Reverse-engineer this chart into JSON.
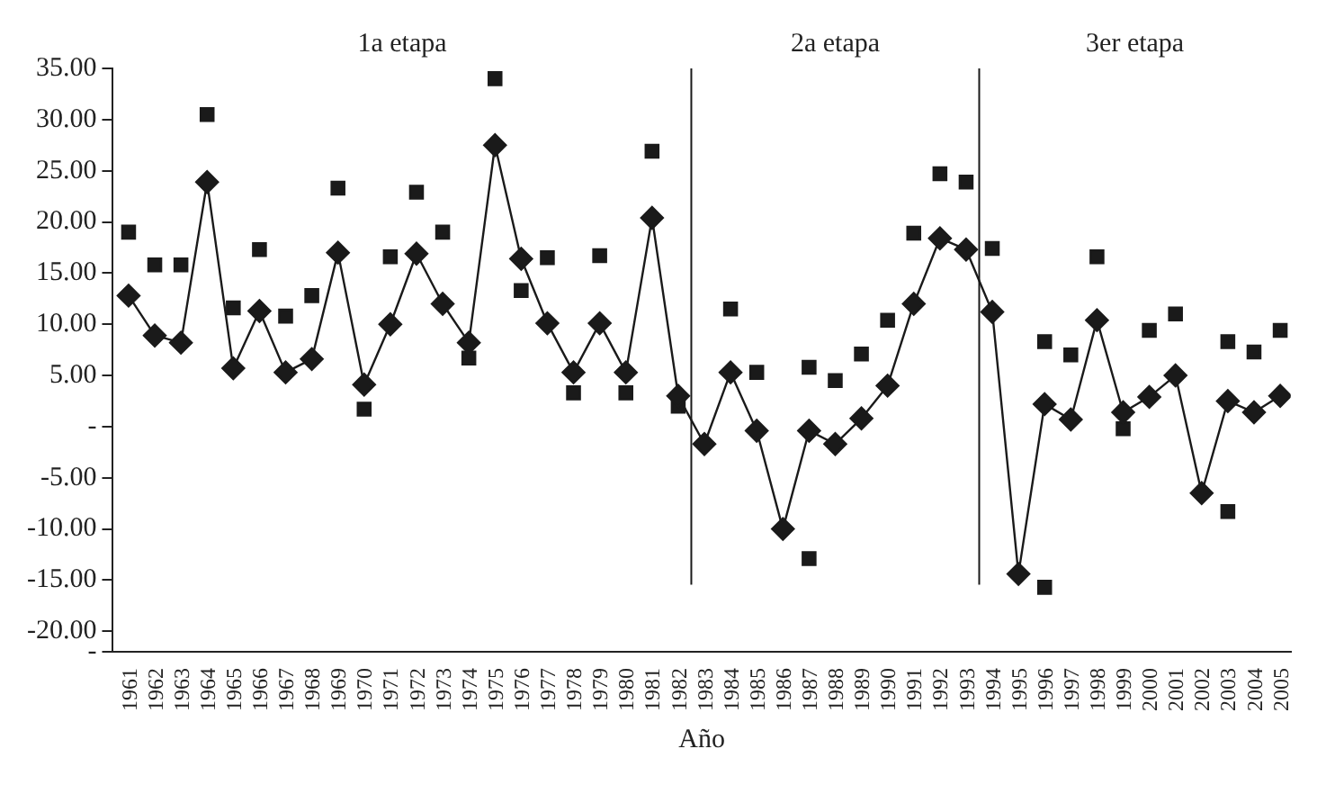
{
  "chart_data": {
    "type": "line",
    "xlabel": "Año",
    "x": [
      1961,
      1962,
      1963,
      1964,
      1965,
      1966,
      1967,
      1968,
      1969,
      1970,
      1971,
      1972,
      1973,
      1974,
      1975,
      1976,
      1977,
      1978,
      1979,
      1980,
      1981,
      1982,
      1983,
      1984,
      1985,
      1986,
      1987,
      1988,
      1989,
      1990,
      1991,
      1992,
      1993,
      1994,
      1995,
      1996,
      1997,
      1998,
      1999,
      2000,
      2001,
      2002,
      2003,
      2004,
      2005
    ],
    "series": [
      {
        "color": "#1a1a1a",
        "marker": "diamond",
        "values": [
          12.8,
          8.9,
          8.2,
          23.9,
          5.7,
          11.3,
          5.3,
          6.6,
          17.0,
          4.1,
          10.0,
          16.9,
          12.0,
          8.2,
          27.5,
          16.4,
          10.1,
          5.3,
          10.1,
          5.3,
          20.4,
          3.0,
          -1.7,
          5.3,
          -0.4,
          -10.0,
          -0.4,
          -1.7,
          0.8,
          4.0,
          12.0,
          18.4,
          17.3,
          11.2,
          -14.4,
          2.2,
          0.7,
          10.4,
          1.4,
          2.9,
          5.0,
          -6.5,
          2.5,
          1.4,
          3.0
        ]
      },
      {
        "type": "scatter",
        "color": "#1a1a1a",
        "marker": "square",
        "x": [
          1961,
          1962,
          1963,
          1964,
          1965,
          1966,
          1967,
          1968,
          1969,
          1970,
          1971,
          1972,
          1973,
          1974,
          1975,
          1976,
          1977,
          1978,
          1979,
          1980,
          1981,
          1982,
          1984,
          1985,
          1987,
          1987,
          1988,
          1989,
          1990,
          1991,
          1992,
          1993,
          1994,
          1996,
          1996,
          1997,
          1998,
          1999,
          2000,
          2001,
          2003,
          2003,
          2004,
          2005
        ],
        "values": [
          19.0,
          15.8,
          15.8,
          30.5,
          11.6,
          17.3,
          10.8,
          12.8,
          23.3,
          1.7,
          16.6,
          22.9,
          19.0,
          6.7,
          34.0,
          13.3,
          16.5,
          3.3,
          16.7,
          3.3,
          26.9,
          2.0,
          11.5,
          5.3,
          5.8,
          -12.9,
          4.5,
          7.1,
          10.4,
          18.9,
          24.7,
          23.9,
          17.4,
          8.3,
          -15.7,
          7.0,
          16.6,
          -0.2,
          9.4,
          11.0,
          8.3,
          -8.3,
          7.3,
          9.4
        ]
      }
    ],
    "xlim": [
      1960.4,
      2005.4
    ],
    "xticks": [
      1961,
      1962,
      1963,
      1964,
      1965,
      1966,
      1967,
      1968,
      1969,
      1970,
      1971,
      1972,
      1973,
      1974,
      1975,
      1976,
      1977,
      1978,
      1979,
      1980,
      1981,
      1982,
      1983,
      1984,
      1985,
      1986,
      1987,
      1988,
      1989,
      1990,
      1991,
      1992,
      1993,
      1994,
      1995,
      1996,
      1997,
      1998,
      1999,
      2000,
      2001,
      2002,
      2003,
      2004,
      2005
    ],
    "ylim": [
      -22,
      35
    ],
    "yticks": [
      {
        "value": 35,
        "label": "35.00"
      },
      {
        "value": 30,
        "label": "30.00"
      },
      {
        "value": 25,
        "label": "25.00"
      },
      {
        "value": 20,
        "label": "20.00"
      },
      {
        "value": 15,
        "label": "15.00"
      },
      {
        "value": 10,
        "label": "10.00"
      },
      {
        "value": 5,
        "label": "5.00"
      },
      {
        "value": 0,
        "label": "-"
      },
      {
        "value": -5,
        "label": "-5.00"
      },
      {
        "value": -10,
        "label": "-10.00"
      },
      {
        "value": -15,
        "label": "-15.00"
      },
      {
        "value": -20,
        "label": "-20.00"
      },
      {
        "value": -22,
        "label": "-"
      }
    ],
    "ref_lines": [
      {
        "axis": "x",
        "value": 1982.5,
        "color": "#1a1a1a"
      },
      {
        "axis": "x",
        "value": 1993.5,
        "color": "#1a1a1a"
      }
    ],
    "annotations": [
      "1a etapa",
      "2a etapa",
      "3er etapa"
    ],
    "grid": false,
    "legend": false
  }
}
